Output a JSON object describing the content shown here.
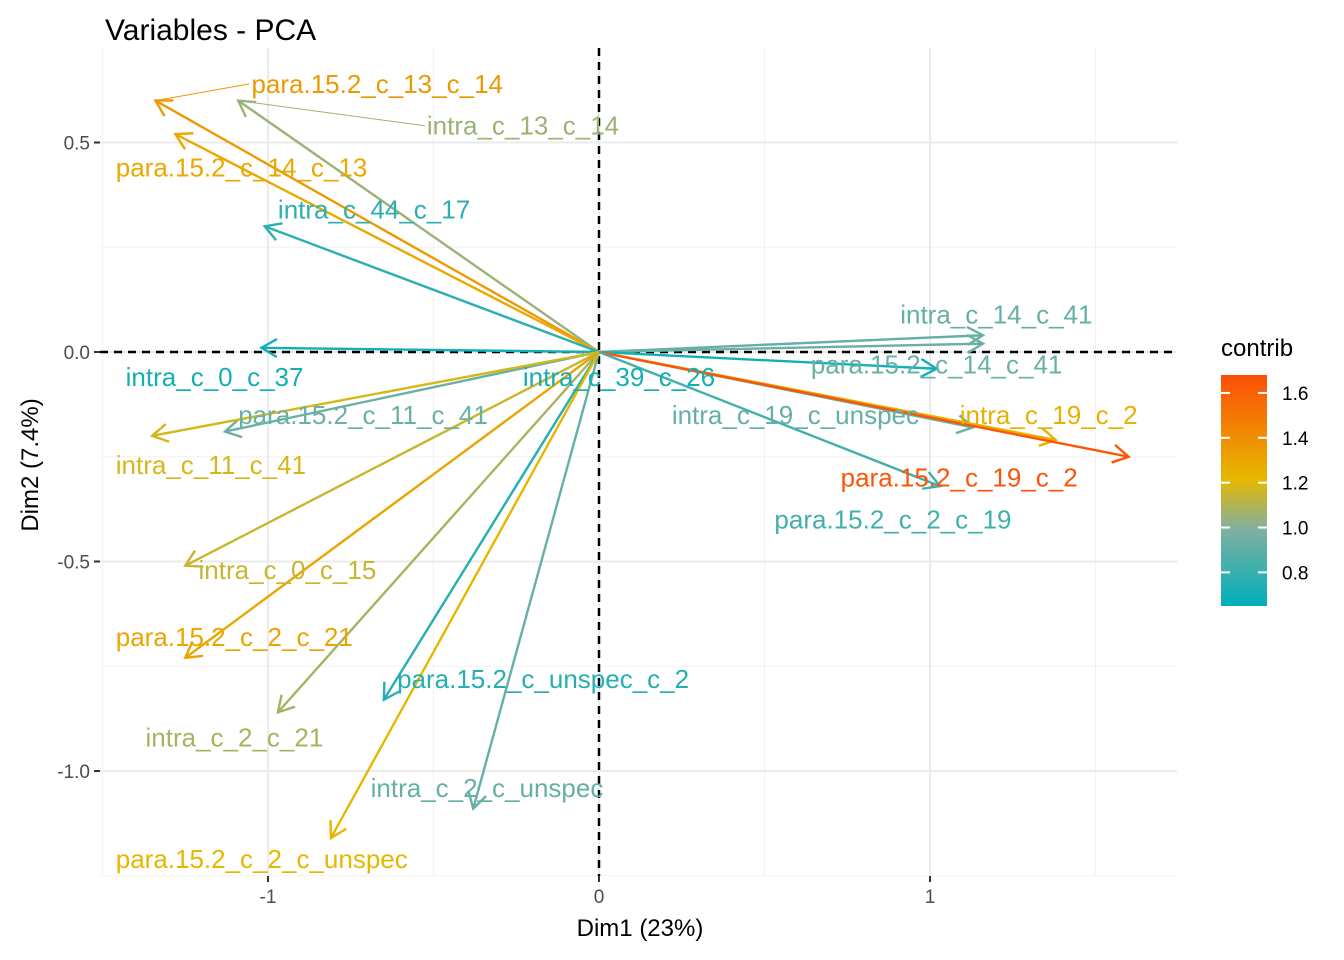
{
  "chart_data": {
    "type": "scatter",
    "subtype": "pca-variable-arrows",
    "title": "Variables - PCA",
    "xlabel": "Dim1 (23%)",
    "ylabel": "Dim2 (7.4%)",
    "xlim": [
      -1.5,
      1.75
    ],
    "ylim": [
      -1.25,
      0.69
    ],
    "x_ticks": [
      {
        "value": -1,
        "label": "-1"
      },
      {
        "value": 0,
        "label": "0"
      },
      {
        "value": 1,
        "label": "1"
      }
    ],
    "y_ticks": [
      {
        "value": 0.5,
        "label": "0.5"
      },
      {
        "value": 0,
        "label": "0.0"
      },
      {
        "value": -0.5,
        "label": "-0.5"
      },
      {
        "value": -1,
        "label": "-1.0"
      }
    ],
    "grid": true,
    "reference_lines": {
      "x": 0,
      "y": 0,
      "style": "dashed"
    },
    "legend": {
      "title": "contrib",
      "position": "right",
      "type": "gradient",
      "range": [
        0.65,
        1.68
      ],
      "ticks": [
        {
          "value": 0.8,
          "label": "0.8"
        },
        {
          "value": 1.0,
          "label": "1.0"
        },
        {
          "value": 1.2,
          "label": "1.2"
        },
        {
          "value": 1.4,
          "label": "1.4"
        },
        {
          "value": 1.6,
          "label": "1.6"
        }
      ],
      "colors": [
        "#00AFBB",
        "#E7B800",
        "#FC4E07"
      ]
    },
    "variables": [
      {
        "name": "para.15.2_c_13_c_14",
        "x": -1.34,
        "y": 0.6,
        "contrib": 1.35,
        "label_x": -1.05,
        "label_y": 0.64
      },
      {
        "name": "intra_c_13_c_14",
        "x": -1.09,
        "y": 0.6,
        "contrib": 1.05,
        "label_x": -0.52,
        "label_y": 0.54
      },
      {
        "name": "para.15.2_c_14_c_13",
        "x": -1.28,
        "y": 0.52,
        "contrib": 1.28,
        "label_x": -1.46,
        "label_y": 0.44
      },
      {
        "name": "intra_c_44_c_17",
        "x": -1.01,
        "y": 0.3,
        "contrib": 0.77,
        "label_x": -0.97,
        "label_y": 0.34
      },
      {
        "name": "intra_c_0_c_37",
        "x": -1.02,
        "y": 0.01,
        "contrib": 0.7,
        "label_x": -1.43,
        "label_y": -0.06
      },
      {
        "name": "para.15.2_c_11_c_41",
        "x": -1.13,
        "y": -0.19,
        "contrib": 0.93,
        "label_x": -1.09,
        "label_y": -0.15
      },
      {
        "name": "intra_c_11_c_41",
        "x": -1.35,
        "y": -0.2,
        "contrib": 1.18,
        "label_x": -1.46,
        "label_y": -0.27
      },
      {
        "name": "intra_c_0_c_15",
        "x": -1.25,
        "y": -0.51,
        "contrib": 1.15,
        "label_x": -1.21,
        "label_y": -0.52
      },
      {
        "name": "para.15.2_c_2_c_21",
        "x": -1.25,
        "y": -0.73,
        "contrib": 1.3,
        "label_x": -1.46,
        "label_y": -0.68
      },
      {
        "name": "intra_c_2_c_21",
        "x": -0.97,
        "y": -0.86,
        "contrib": 1.08,
        "label_x": -1.37,
        "label_y": -0.92
      },
      {
        "name": "para.15.2_c_unspec_c_2",
        "x": -0.65,
        "y": -0.83,
        "contrib": 0.75,
        "label_x": -0.61,
        "label_y": -0.78
      },
      {
        "name": "intra_c_2_c_unspec",
        "x": -0.38,
        "y": -1.09,
        "contrib": 0.92,
        "label_x": -0.69,
        "label_y": -1.04
      },
      {
        "name": "para.15.2_c_2_c_unspec",
        "x": -0.81,
        "y": -1.16,
        "contrib": 1.22,
        "label_x": -1.46,
        "label_y": -1.21
      },
      {
        "name": "intra_c_14_c_41",
        "x": 1.16,
        "y": 0.04,
        "contrib": 0.92,
        "label_x": 0.91,
        "label_y": 0.09
      },
      {
        "name": "para.15.2_c_14_c_41",
        "x": 1.16,
        "y": 0.02,
        "contrib": 0.93,
        "label_x": 0.64,
        "label_y": -0.03
      },
      {
        "name": "intra_c_39_c_26",
        "x": 1.02,
        "y": -0.04,
        "contrib": 0.7,
        "label_x": -0.23,
        "label_y": -0.06
      },
      {
        "name": "intra_c_19_c_unspec",
        "x": 1.13,
        "y": -0.18,
        "contrib": 0.92,
        "label_x": 0.22,
        "label_y": -0.15
      },
      {
        "name": "intra_c_19_c_2",
        "x": 1.38,
        "y": -0.21,
        "contrib": 1.25,
        "label_x": 1.09,
        "label_y": -0.15
      },
      {
        "name": "para.15.2_c_19_c_2",
        "x": 1.6,
        "y": -0.25,
        "contrib": 1.65,
        "label_x": 0.73,
        "label_y": -0.3
      },
      {
        "name": "para.15.2_c_2_c_19",
        "x": 1.03,
        "y": -0.32,
        "contrib": 0.82,
        "label_x": 0.53,
        "label_y": -0.4
      }
    ]
  }
}
